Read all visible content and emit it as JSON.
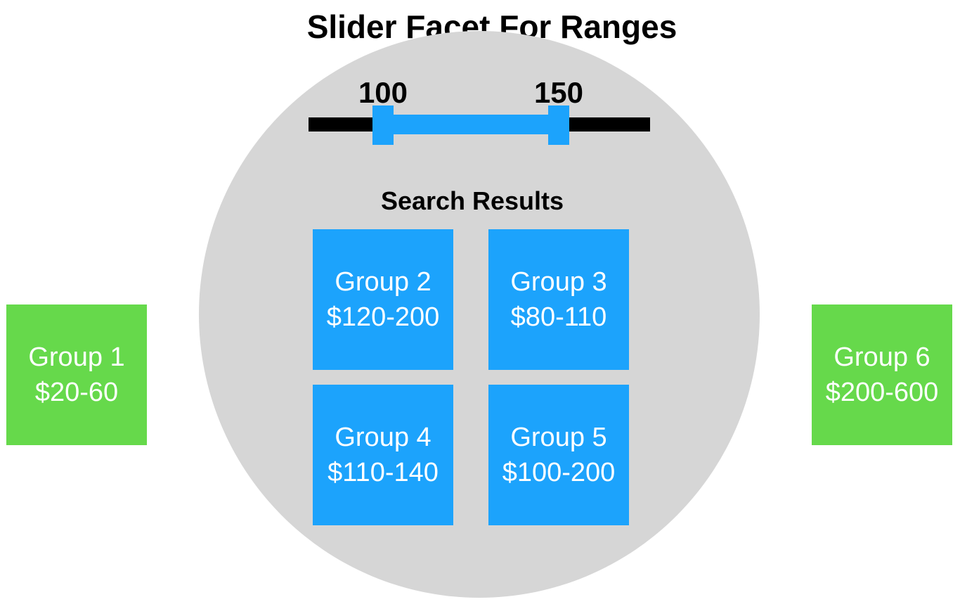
{
  "title": "Slider Facet For Ranges",
  "slider": {
    "min_value": "100",
    "max_value": "150",
    "colors": {
      "track": "#000000",
      "range": "#1ca3fc"
    }
  },
  "results_heading": "Search Results",
  "groups": [
    {
      "name": "Group 1",
      "range": "$20-60",
      "in_results": false,
      "color": "#66d94b"
    },
    {
      "name": "Group 2",
      "range": "$120-200",
      "in_results": true,
      "color": "#1ca3fc"
    },
    {
      "name": "Group 3",
      "range": "$80-110",
      "in_results": true,
      "color": "#1ca3fc"
    },
    {
      "name": "Group 4",
      "range": "$110-140",
      "in_results": true,
      "color": "#1ca3fc"
    },
    {
      "name": "Group 5",
      "range": "$100-200",
      "in_results": true,
      "color": "#1ca3fc"
    },
    {
      "name": "Group 6",
      "range": "$200-600",
      "in_results": false,
      "color": "#66d94b"
    }
  ],
  "colors": {
    "circle": "#d6d6d6",
    "background": "#ffffff"
  }
}
